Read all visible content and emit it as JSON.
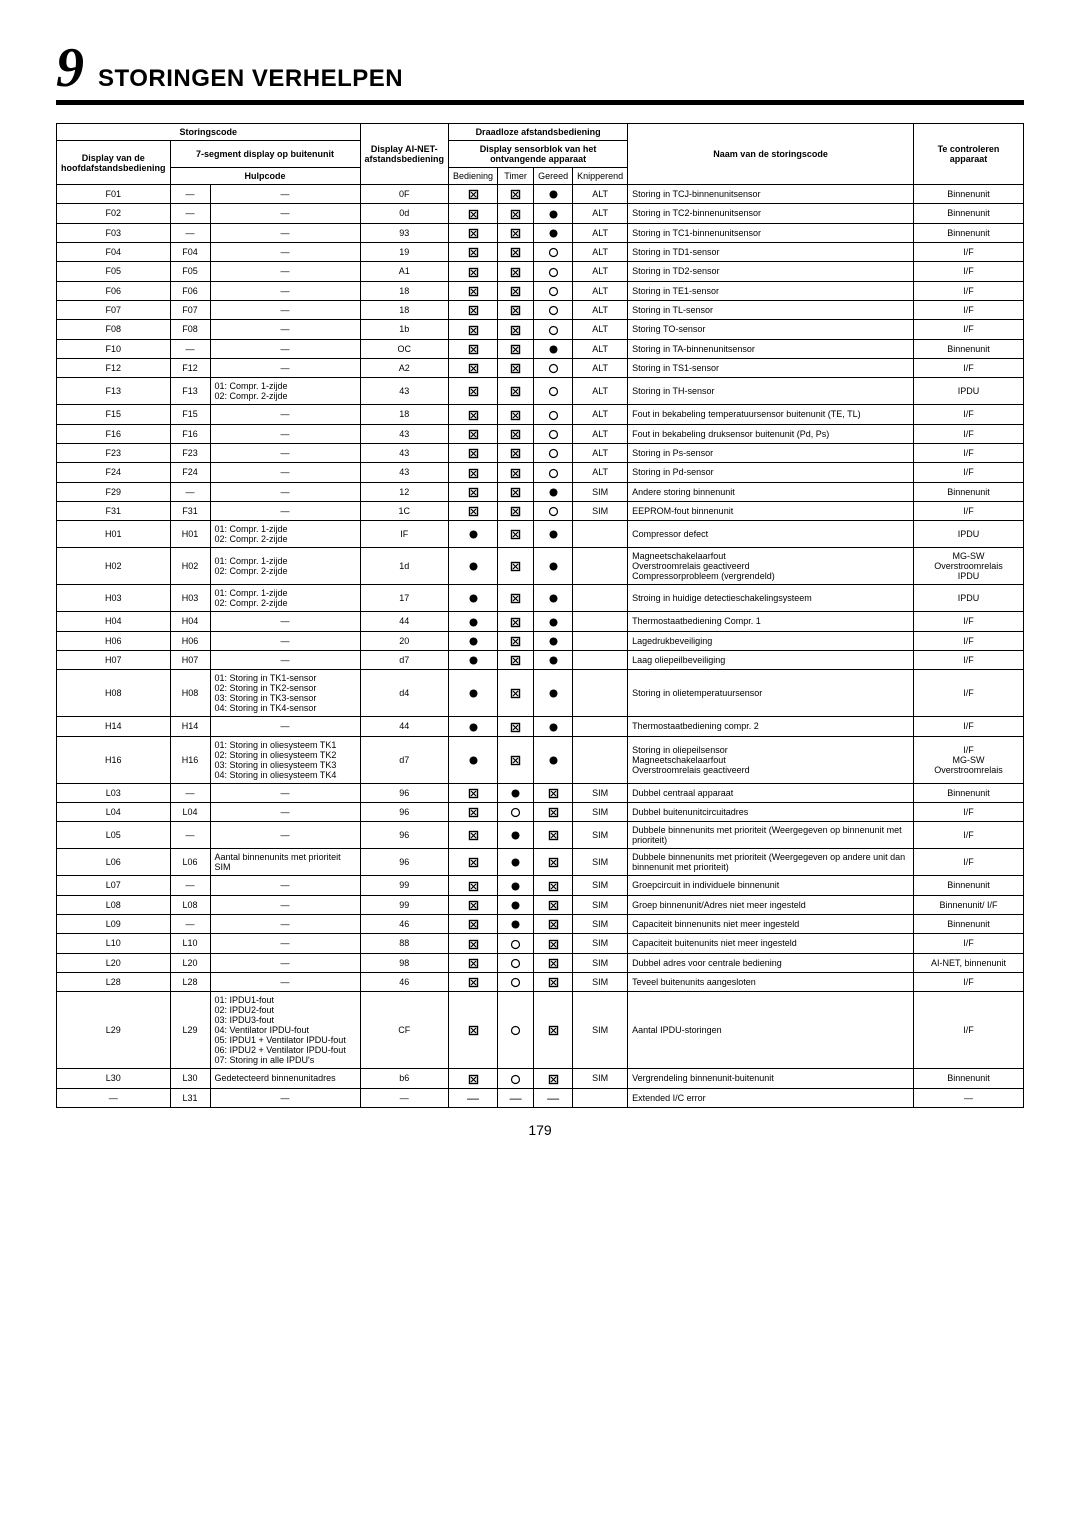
{
  "chapter": {
    "num": "9",
    "title": "STORINGEN VERHELPEN"
  },
  "page_number": "179",
  "headers": {
    "storingscode": "Storingscode",
    "draadloze": "Draadloze afstandsbediening",
    "display_van_de": "Display van de hoofdafstandsbediening",
    "seven_seg": "7-segment display op buitenunit",
    "ai_net": "Display AI-NET-afstandsbediening",
    "sensorblok": "Display sensorblok van het ontvangende apparaat",
    "naam": "Naam van de storingscode",
    "te_controleren": "Te controleren apparaat",
    "hulpcode": "Hulpcode",
    "bediening": "Bediening",
    "timer": "Timer",
    "gereed": "Gereed",
    "knipperend": "Knipperend"
  },
  "rows": [
    {
      "c": "F01",
      "s": "—",
      "h": "—",
      "ai": "0F",
      "b": "sq",
      "t": "sq",
      "g": "dot",
      "k": "ALT",
      "n": "Storing in TCJ-binnenunitsensor",
      "a": "Binnenunit"
    },
    {
      "c": "F02",
      "s": "—",
      "h": "—",
      "ai": "0d",
      "b": "sq",
      "t": "sq",
      "g": "dot",
      "k": "ALT",
      "n": "Storing in TC2-binnenunitsensor",
      "a": "Binnenunit"
    },
    {
      "c": "F03",
      "s": "—",
      "h": "—",
      "ai": "93",
      "b": "sq",
      "t": "sq",
      "g": "dot",
      "k": "ALT",
      "n": "Storing in TC1-binnenunitsensor",
      "a": "Binnenunit"
    },
    {
      "c": "F04",
      "s": "F04",
      "h": "—",
      "ai": "19",
      "b": "sq",
      "t": "sq",
      "g": "circ",
      "k": "ALT",
      "n": "Storing in TD1-sensor",
      "a": "I/F"
    },
    {
      "c": "F05",
      "s": "F05",
      "h": "—",
      "ai": "A1",
      "b": "sq",
      "t": "sq",
      "g": "circ",
      "k": "ALT",
      "n": "Storing in TD2-sensor",
      "a": "I/F"
    },
    {
      "c": "F06",
      "s": "F06",
      "h": "—",
      "ai": "18",
      "b": "sq",
      "t": "sq",
      "g": "circ",
      "k": "ALT",
      "n": "Storing in TE1-sensor",
      "a": "I/F"
    },
    {
      "c": "F07",
      "s": "F07",
      "h": "—",
      "ai": "18",
      "b": "sq",
      "t": "sq",
      "g": "circ",
      "k": "ALT",
      "n": "Storing in TL-sensor",
      "a": "I/F"
    },
    {
      "c": "F08",
      "s": "F08",
      "h": "—",
      "ai": "1b",
      "b": "sq",
      "t": "sq",
      "g": "circ",
      "k": "ALT",
      "n": "Storing TO-sensor",
      "a": "I/F"
    },
    {
      "c": "F10",
      "s": "—",
      "h": "—",
      "ai": "OC",
      "b": "sq",
      "t": "sq",
      "g": "dot",
      "k": "ALT",
      "n": "Storing in TA-binnenunitsensor",
      "a": "Binnenunit"
    },
    {
      "c": "F12",
      "s": "F12",
      "h": "—",
      "ai": "A2",
      "b": "sq",
      "t": "sq",
      "g": "circ",
      "k": "ALT",
      "n": "Storing in TS1-sensor",
      "a": "I/F"
    },
    {
      "c": "F13",
      "s": "F13",
      "h": "01: Compr. 1-zijde\n02: Compr. 2-zijde",
      "ai": "43",
      "b": "sq",
      "t": "sq",
      "g": "circ",
      "k": "ALT",
      "n": "Storing in TH-sensor",
      "a": "IPDU"
    },
    {
      "c": "F15",
      "s": "F15",
      "h": "—",
      "ai": "18",
      "b": "sq",
      "t": "sq",
      "g": "circ",
      "k": "ALT",
      "n": "Fout in bekabeling temperatuursensor buitenunit (TE, TL)",
      "a": "I/F"
    },
    {
      "c": "F16",
      "s": "F16",
      "h": "—",
      "ai": "43",
      "b": "sq",
      "t": "sq",
      "g": "circ",
      "k": "ALT",
      "n": "Fout in bekabeling druksensor buitenunit (Pd, Ps)",
      "a": "I/F"
    },
    {
      "c": "F23",
      "s": "F23",
      "h": "—",
      "ai": "43",
      "b": "sq",
      "t": "sq",
      "g": "circ",
      "k": "ALT",
      "n": "Storing in Ps-sensor",
      "a": "I/F"
    },
    {
      "c": "F24",
      "s": "F24",
      "h": "—",
      "ai": "43",
      "b": "sq",
      "t": "sq",
      "g": "circ",
      "k": "ALT",
      "n": "Storing in Pd-sensor",
      "a": "I/F"
    },
    {
      "c": "F29",
      "s": "—",
      "h": "—",
      "ai": "12",
      "b": "sq",
      "t": "sq",
      "g": "dot",
      "k": "SIM",
      "n": "Andere storing binnenunit",
      "a": "Binnenunit"
    },
    {
      "c": "F31",
      "s": "F31",
      "h": "—",
      "ai": "1C",
      "b": "sq",
      "t": "sq",
      "g": "circ",
      "k": "SIM",
      "n": "EEPROM-fout binnenunit",
      "a": "I/F"
    },
    {
      "c": "H01",
      "s": "H01",
      "h": "01: Compr. 1-zijde\n02: Compr. 2-zijde",
      "ai": "IF",
      "b": "dot",
      "t": "sq",
      "g": "dot",
      "k": "",
      "n": "Compressor defect",
      "a": "IPDU"
    },
    {
      "c": "H02",
      "s": "H02",
      "h": "01: Compr. 1-zijde\n02: Compr. 2-zijde",
      "ai": "1d",
      "b": "dot",
      "t": "sq",
      "g": "dot",
      "k": "",
      "n": "Magneetschakelaarfout\nOverstroomrelais geactiveerd\nCompressorprobleem (vergrendeld)",
      "a": "MG-SW\nOverstroomrelais\nIPDU"
    },
    {
      "c": "H03",
      "s": "H03",
      "h": "01: Compr. 1-zijde\n02: Compr. 2-zijde",
      "ai": "17",
      "b": "dot",
      "t": "sq",
      "g": "dot",
      "k": "",
      "n": "Stroing in huidige detectieschakelingsysteem",
      "a": "IPDU"
    },
    {
      "c": "H04",
      "s": "H04",
      "h": "—",
      "ai": "44",
      "b": "dot",
      "t": "sq",
      "g": "dot",
      "k": "",
      "n": "Thermostaatbediening Compr. 1",
      "a": "I/F"
    },
    {
      "c": "H06",
      "s": "H06",
      "h": "—",
      "ai": "20",
      "b": "dot",
      "t": "sq",
      "g": "dot",
      "k": "",
      "n": "Lagedrukbeveiliging",
      "a": "I/F"
    },
    {
      "c": "H07",
      "s": "H07",
      "h": "—",
      "ai": "d7",
      "b": "dot",
      "t": "sq",
      "g": "dot",
      "k": "",
      "n": "Laag oliepeilbeveiliging",
      "a": "I/F"
    },
    {
      "c": "H08",
      "s": "H08",
      "h": "01: Storing in TK1-sensor\n02: Storing in TK2-sensor\n03: Storing in TK3-sensor\n04: Storing in TK4-sensor",
      "ai": "d4",
      "b": "dot",
      "t": "sq",
      "g": "dot",
      "k": "",
      "n": "Storing in olietemperatuursensor",
      "a": "I/F"
    },
    {
      "c": "H14",
      "s": "H14",
      "h": "—",
      "ai": "44",
      "b": "dot",
      "t": "sq",
      "g": "dot",
      "k": "",
      "n": "Thermostaatbediening compr. 2",
      "a": "I/F"
    },
    {
      "c": "H16",
      "s": "H16",
      "h": "01: Storing in oliesysteem TK1\n02: Storing in oliesysteem TK2\n03: Storing in oliesysteem TK3\n04: Storing in oliesysteem TK4",
      "ai": "d7",
      "b": "dot",
      "t": "sq",
      "g": "dot",
      "k": "",
      "n": "Storing in oliepeilsensor\nMagneetschakelaarfout\nOverstroomrelais geactiveerd",
      "a": "I/F\nMG-SW\nOverstroomrelais"
    },
    {
      "c": "L03",
      "s": "—",
      "h": "—",
      "ai": "96",
      "b": "sq",
      "t": "dot",
      "g": "sq",
      "k": "SIM",
      "n": "Dubbel centraal apparaat",
      "a": "Binnenunit"
    },
    {
      "c": "L04",
      "s": "L04",
      "h": "—",
      "ai": "96",
      "b": "sq",
      "t": "circ",
      "g": "sq",
      "k": "SIM",
      "n": "Dubbel buitenunitcircuitadres",
      "a": "I/F"
    },
    {
      "c": "L05",
      "s": "—",
      "h": "—",
      "ai": "96",
      "b": "sq",
      "t": "dot",
      "g": "sq",
      "k": "SIM",
      "n": "Dubbele binnenunits met prioriteit (Weergegeven op binnenunit met prioriteit)",
      "a": "I/F"
    },
    {
      "c": "L06",
      "s": "L06",
      "h": "Aantal binnenunits met prioriteit SIM",
      "ai": "96",
      "b": "sq",
      "t": "dot",
      "g": "sq",
      "k": "SIM",
      "n": "Dubbele binnenunits met prioriteit (Weergegeven op andere unit dan binnenunit met prioriteit)",
      "a": "I/F"
    },
    {
      "c": "L07",
      "s": "—",
      "h": "—",
      "ai": "99",
      "b": "sq",
      "t": "dot",
      "g": "sq",
      "k": "SIM",
      "n": "Groepcircuit in individuele binnenunit",
      "a": "Binnenunit"
    },
    {
      "c": "L08",
      "s": "L08",
      "h": "—",
      "ai": "99",
      "b": "sq",
      "t": "dot",
      "g": "sq",
      "k": "SIM",
      "n": "Groep binnenunit/Adres niet meer ingesteld",
      "a": "Binnenunit/ I/F"
    },
    {
      "c": "L09",
      "s": "—",
      "h": "—",
      "ai": "46",
      "b": "sq",
      "t": "dot",
      "g": "sq",
      "k": "SIM",
      "n": "Capaciteit binnenunits niet meer ingesteld",
      "a": "Binnenunit"
    },
    {
      "c": "L10",
      "s": "L10",
      "h": "—",
      "ai": "88",
      "b": "sq",
      "t": "circ",
      "g": "sq",
      "k": "SIM",
      "n": "Capaciteit buitenunits niet meer ingesteld",
      "a": "I/F"
    },
    {
      "c": "L20",
      "s": "L20",
      "h": "—",
      "ai": "98",
      "b": "sq",
      "t": "circ",
      "g": "sq",
      "k": "SIM",
      "n": "Dubbel adres voor centrale bediening",
      "a": "AI-NET, binnenunit"
    },
    {
      "c": "L28",
      "s": "L28",
      "h": "—",
      "ai": "46",
      "b": "sq",
      "t": "circ",
      "g": "sq",
      "k": "SIM",
      "n": "Teveel buitenunits aangesloten",
      "a": "I/F"
    },
    {
      "c": "L29",
      "s": "L29",
      "h": "01: IPDU1-fout\n02: IPDU2-fout\n03: IPDU3-fout\n04: Ventilator IPDU-fout\n05: IPDU1 + Ventilator IPDU-fout\n06: IPDU2 + Ventilator IPDU-fout\n07: Storing in alle IPDU's",
      "ai": "CF",
      "b": "sq",
      "t": "circ",
      "g": "sq",
      "k": "SIM",
      "n": "Aantal IPDU-storingen",
      "a": "I/F"
    },
    {
      "c": "L30",
      "s": "L30",
      "h": "Gedetecteerd binnenunitadres",
      "ai": "b6",
      "b": "sq",
      "t": "circ",
      "g": "sq",
      "k": "SIM",
      "n": "Vergrendeling binnenunit-buitenunit",
      "a": "Binnenunit"
    },
    {
      "c": "—",
      "s": "L31",
      "h": "—",
      "ai": "—",
      "b": "—",
      "t": "—",
      "g": "—",
      "k": "",
      "n": "Extended I/C error",
      "a": "—"
    }
  ]
}
